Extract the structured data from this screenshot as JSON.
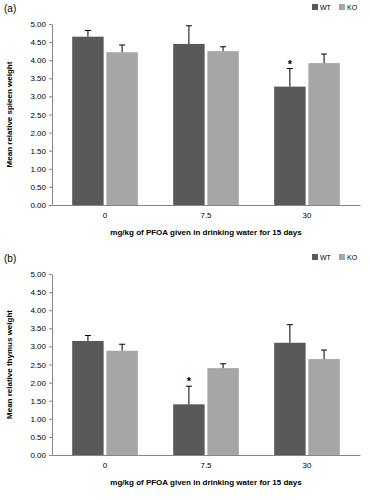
{
  "chart_data": [
    {
      "type": "bar",
      "title": "(a)",
      "x_label": "mg/kg of PFOA given in drinking water for 15 days",
      "y_label": "Mean relative spleen weight",
      "categories": [
        "0",
        "7.5",
        "30"
      ],
      "series": [
        {
          "name": "WT",
          "color": "#595959",
          "values": [
            4.65,
            4.45,
            3.27
          ],
          "errors": [
            0.17,
            0.5,
            0.5
          ]
        },
        {
          "name": "KO",
          "color": "#a6a6a6",
          "values": [
            4.22,
            4.25,
            3.92
          ],
          "errors": [
            0.2,
            0.12,
            0.25
          ]
        }
      ],
      "annotations": [
        {
          "text": "*",
          "category": "30",
          "series": "WT"
        }
      ],
      "ylim": [
        0,
        5
      ],
      "yticks": [
        {
          "value": 0,
          "label": "0.00"
        },
        {
          "value": 0.5,
          "label": "0.50"
        },
        {
          "value": 1,
          "label": "1.00"
        },
        {
          "value": 1.5,
          "label": "1.50"
        },
        {
          "value": 2,
          "label": "2.00"
        },
        {
          "value": 2.5,
          "label": "2.50"
        },
        {
          "value": 3,
          "label": "3.00"
        },
        {
          "value": 3.5,
          "label": "3.50"
        },
        {
          "value": 4,
          "label": "4.00"
        },
        {
          "value": 4.5,
          "label": "4.50"
        },
        {
          "value": 5,
          "label": "5.00"
        }
      ],
      "grid": false,
      "legend": "top-right"
    },
    {
      "type": "bar",
      "title": "(b)",
      "x_label": "mg/kg of PFOA given in drinking water for 15 days",
      "y_label": "Mean relative thymus weight",
      "categories": [
        "0",
        "7.5",
        "30"
      ],
      "series": [
        {
          "name": "WT",
          "color": "#595959",
          "values": [
            3.15,
            1.4,
            3.1
          ],
          "errors": [
            0.15,
            0.5,
            0.5
          ]
        },
        {
          "name": "KO",
          "color": "#a6a6a6",
          "values": [
            2.88,
            2.4,
            2.65
          ],
          "errors": [
            0.18,
            0.12,
            0.25
          ]
        }
      ],
      "annotations": [
        {
          "text": "*",
          "category": "7.5",
          "series": "WT"
        }
      ],
      "ylim": [
        0,
        5
      ],
      "yticks": [
        {
          "value": 0,
          "label": "0.00"
        },
        {
          "value": 0.5,
          "label": "0.50"
        },
        {
          "value": 1,
          "label": "1.00"
        },
        {
          "value": 1.5,
          "label": "1.50"
        },
        {
          "value": 2,
          "label": "2.00"
        },
        {
          "value": 2.5,
          "label": "2.50"
        },
        {
          "value": 3,
          "label": "3.00"
        },
        {
          "value": 3.5,
          "label": "3.50"
        },
        {
          "value": 4,
          "label": "4.00"
        },
        {
          "value": 4.5,
          "label": "4.50"
        },
        {
          "value": 5,
          "label": "5.00"
        }
      ],
      "grid": false,
      "legend": "top-right"
    }
  ]
}
